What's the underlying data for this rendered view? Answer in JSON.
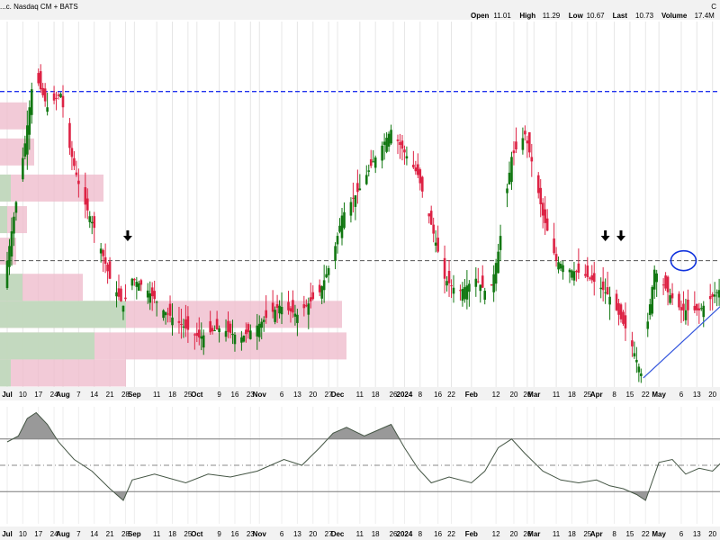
{
  "header": {
    "title": "...c. Nasdaq CM + BATS",
    "ohlc": [
      {
        "label": "Open",
        "value": "11.01"
      },
      {
        "label": "High",
        "value": "11.29"
      },
      {
        "label": "Low",
        "value": "10.67"
      },
      {
        "label": "Last",
        "value": "10.73"
      },
      {
        "label": "Volume",
        "value": "17.4M"
      }
    ],
    "truncated_tail": "Ch",
    "right_edge_glyph": "C",
    "price_axis_hint": "73"
  },
  "chart_data": {
    "type": "candlestick",
    "x_labels": [
      "Jul",
      "10",
      "17",
      "24",
      "Aug",
      "7",
      "14",
      "21",
      "28",
      "Sep",
      "11",
      "18",
      "25",
      "Oct",
      "9",
      "16",
      "23",
      "Nov",
      "6",
      "13",
      "20",
      "27",
      "Dec",
      "11",
      "18",
      "26",
      "2024",
      "8",
      "16",
      "22",
      "Feb",
      "12",
      "20",
      "26",
      "Mar",
      "11",
      "18",
      "25",
      "Apr",
      "8",
      "15",
      "22",
      "May",
      "6",
      "13",
      "20"
    ],
    "x_label_days": [
      0,
      7,
      14,
      21,
      25,
      32,
      39,
      46,
      53,
      57,
      67,
      74,
      81,
      85,
      95,
      102,
      109,
      113,
      123,
      130,
      137,
      144,
      148,
      158,
      165,
      173,
      178,
      185,
      193,
      199,
      208,
      219,
      227,
      233,
      236,
      246,
      253,
      260,
      264,
      272,
      279,
      286,
      292,
      302,
      309,
      316
    ],
    "first_day": "2023-07-03",
    "price_range": [
      9.2,
      17.3
    ],
    "series": [
      {
        "name": "Price",
        "anchors": [
          [
            0,
            12.0
          ],
          [
            8,
            14.6
          ],
          [
            12,
            16.2
          ],
          [
            18,
            15.4
          ],
          [
            24,
            15.7
          ],
          [
            28,
            14.5
          ],
          [
            33,
            13.5
          ],
          [
            40,
            12.6
          ],
          [
            46,
            11.6
          ],
          [
            52,
            11.0
          ],
          [
            56,
            11.6
          ],
          [
            62,
            11.4
          ],
          [
            70,
            10.9
          ],
          [
            80,
            10.5
          ],
          [
            86,
            10.3
          ],
          [
            95,
            10.5
          ],
          [
            105,
            10.3
          ],
          [
            113,
            10.6
          ],
          [
            122,
            11.0
          ],
          [
            130,
            10.8
          ],
          [
            140,
            11.3
          ],
          [
            146,
            12.1
          ],
          [
            150,
            13.0
          ],
          [
            158,
            13.6
          ],
          [
            164,
            14.2
          ],
          [
            172,
            14.9
          ],
          [
            178,
            14.4
          ],
          [
            184,
            13.9
          ],
          [
            190,
            12.8
          ],
          [
            196,
            11.6
          ],
          [
            202,
            11.3
          ],
          [
            210,
            11.6
          ],
          [
            216,
            11.2
          ],
          [
            220,
            12.2
          ],
          [
            226,
            14.3
          ],
          [
            232,
            14.8
          ],
          [
            236,
            14.0
          ],
          [
            240,
            13.0
          ],
          [
            246,
            12.0
          ],
          [
            252,
            11.8
          ],
          [
            258,
            11.7
          ],
          [
            264,
            11.5
          ],
          [
            270,
            11.2
          ],
          [
            278,
            10.4
          ],
          [
            284,
            9.5
          ],
          [
            290,
            11.8
          ],
          [
            296,
            11.3
          ],
          [
            302,
            10.9
          ],
          [
            310,
            10.9
          ],
          [
            316,
            11.2
          ],
          [
            320,
            11.4
          ]
        ]
      }
    ],
    "horizontal_lines": [
      {
        "value": 15.75,
        "color": "#2233ee",
        "style": "dashed"
      },
      {
        "value": 12.0,
        "color": "#555555",
        "style": "dashed"
      }
    ],
    "trend_line": [
      [
        285,
        9.4
      ],
      [
        322,
        11.1
      ]
    ],
    "markers": [
      {
        "type": "arrow-down",
        "day": 54
      },
      {
        "type": "arrow-down",
        "day": 268
      },
      {
        "type": "arrow-down",
        "day": 275
      }
    ],
    "highlight_ellipse": {
      "day": 303,
      "price": 12.0
    },
    "volume_profile": [
      {
        "price": 15.2,
        "green": 0,
        "total": 30
      },
      {
        "price": 14.4,
        "green": 0,
        "total": 38
      },
      {
        "price": 13.6,
        "green": 12,
        "total": 115
      },
      {
        "price": 12.9,
        "green": 8,
        "total": 30
      },
      {
        "price": 12.2,
        "green": 0,
        "total": 18
      },
      {
        "price": 11.4,
        "green": 25,
        "total": 92
      },
      {
        "price": 10.8,
        "green": 140,
        "total": 380
      },
      {
        "price": 10.1,
        "green": 105,
        "total": 385
      },
      {
        "price": 9.5,
        "green": 12,
        "total": 140
      }
    ],
    "oscillator": {
      "range": [
        -100,
        100
      ],
      "upper": 45,
      "lower": -45,
      "points": [
        [
          0,
          40
        ],
        [
          5,
          50
        ],
        [
          9,
          80
        ],
        [
          13,
          90
        ],
        [
          18,
          70
        ],
        [
          23,
          40
        ],
        [
          30,
          10
        ],
        [
          38,
          -10
        ],
        [
          46,
          -40
        ],
        [
          52,
          -60
        ],
        [
          56,
          -25
        ],
        [
          66,
          -15
        ],
        [
          80,
          -30
        ],
        [
          90,
          -15
        ],
        [
          100,
          -20
        ],
        [
          112,
          -10
        ],
        [
          124,
          10
        ],
        [
          132,
          0
        ],
        [
          140,
          30
        ],
        [
          146,
          55
        ],
        [
          152,
          65
        ],
        [
          160,
          50
        ],
        [
          166,
          60
        ],
        [
          172,
          70
        ],
        [
          178,
          30
        ],
        [
          184,
          -5
        ],
        [
          190,
          -30
        ],
        [
          198,
          -20
        ],
        [
          208,
          -30
        ],
        [
          214,
          -10
        ],
        [
          220,
          30
        ],
        [
          226,
          45
        ],
        [
          232,
          20
        ],
        [
          240,
          -10
        ],
        [
          248,
          -25
        ],
        [
          256,
          -30
        ],
        [
          264,
          -25
        ],
        [
          270,
          -35
        ],
        [
          276,
          -40
        ],
        [
          282,
          -50
        ],
        [
          286,
          -60
        ],
        [
          292,
          5
        ],
        [
          298,
          10
        ],
        [
          304,
          -15
        ],
        [
          310,
          -5
        ],
        [
          316,
          -10
        ],
        [
          320,
          5
        ]
      ]
    }
  }
}
